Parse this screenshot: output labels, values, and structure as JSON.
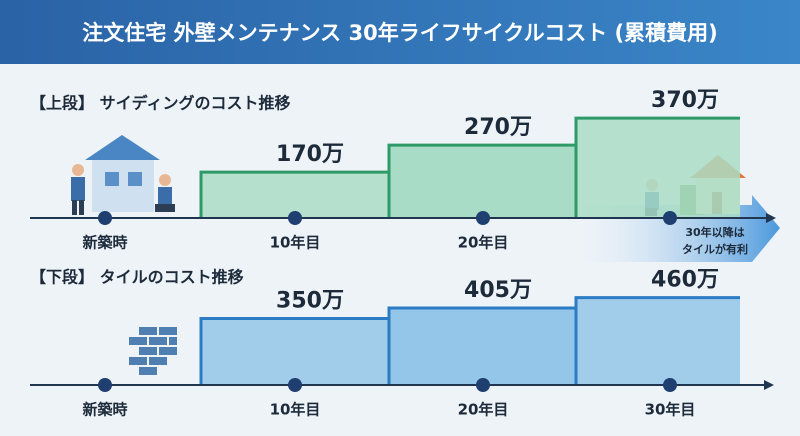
{
  "title": "注文住宅 外壁メンテナンス 30年ライフサイクルコスト (累積費用)",
  "chart_data": [
    {
      "type": "step",
      "subtitle": "【上段】 サイディングのコスト推移",
      "categories": [
        "新築時",
        "10年目",
        "20年目",
        null
      ],
      "values": [
        null,
        170,
        270,
        370
      ],
      "value_labels": [
        null,
        "170万",
        "270万",
        "370万"
      ],
      "color": "#2e9a68",
      "fill": "#a9dcc6",
      "annotation": [
        "30年以降は",
        "タイルが有利"
      ]
    },
    {
      "type": "step",
      "subtitle": "【下段】 タイルのコスト推移",
      "categories": [
        "新築時",
        "10年目",
        "20年目",
        "30年目"
      ],
      "values": [
        null,
        350,
        405,
        460
      ],
      "value_labels": [
        null,
        "350万",
        "405万",
        "460万"
      ],
      "color": "#2b7cc4",
      "fill": "#93c6e8"
    }
  ]
}
